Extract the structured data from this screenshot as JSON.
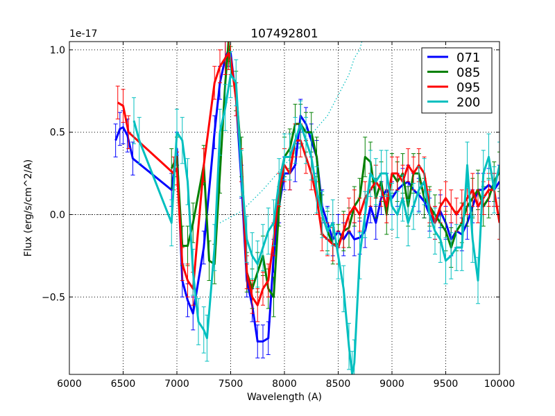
{
  "chart_data": {
    "type": "line",
    "title": "107492801",
    "xlabel": "Wavelength (A)",
    "ylabel": "Flux (erg/s/cm^2/A)",
    "offset_label": "1e-17",
    "xlim": [
      6000,
      10000
    ],
    "ylim": [
      -0.97,
      1.05
    ],
    "x_ticks": [
      6000,
      6500,
      7000,
      7500,
      8000,
      8500,
      9000,
      9500,
      10000
    ],
    "x_tick_labels": [
      "6000",
      "6500",
      "7000",
      "7500",
      "8000",
      "8500",
      "9000",
      "9500",
      "10000"
    ],
    "y_ticks": [
      -0.5,
      0.0,
      0.5,
      1.0
    ],
    "y_tick_labels": [
      "−0.5",
      "0.0",
      "0.5",
      "1.0"
    ],
    "grid": true,
    "legend_position": "top-right",
    "series": [
      {
        "name": "071",
        "color": "#0000ff",
        "x": [
          6430,
          6470,
          6500,
          6540,
          6590,
          6950,
          7000,
          7050,
          7100,
          7150,
          7250,
          7350,
          7400,
          7450,
          7480,
          7500,
          7550,
          7600,
          7650,
          7700,
          7750,
          7800,
          7850,
          7900,
          7950,
          8000,
          8050,
          8100,
          8150,
          8200,
          8250,
          8300,
          8350,
          8400,
          8450,
          8500,
          8550,
          8600,
          8650,
          8700,
          8750,
          8800,
          8850,
          8900,
          8950,
          9000,
          9050,
          9100,
          9150,
          9200,
          9250,
          9300,
          9350,
          9400,
          9450,
          9500,
          9550,
          9600,
          9650,
          9700,
          9750,
          9800,
          9850,
          9900,
          9950,
          10000
        ],
        "y": [
          0.45,
          0.52,
          0.53,
          0.48,
          0.34,
          0.15,
          0.4,
          -0.4,
          -0.52,
          -0.6,
          -0.2,
          0.5,
          0.8,
          0.95,
          1.0,
          0.98,
          0.7,
          0.2,
          -0.4,
          -0.55,
          -0.77,
          -0.77,
          -0.75,
          -0.25,
          0.05,
          0.25,
          0.25,
          0.3,
          0.6,
          0.55,
          0.45,
          0.35,
          0.05,
          -0.05,
          -0.15,
          -0.1,
          -0.15,
          -0.1,
          -0.15,
          -0.14,
          -0.1,
          0.05,
          -0.05,
          0.1,
          0.15,
          0.1,
          0.15,
          0.18,
          0.2,
          0.15,
          0.12,
          0.08,
          0.0,
          -0.05,
          0.02,
          -0.05,
          -0.15,
          -0.1,
          -0.12,
          -0.05,
          0.05,
          0.15,
          0.15,
          0.18,
          0.15,
          0.2
        ],
        "err": 0.1
      },
      {
        "name": "085",
        "color": "#008000",
        "x": [
          6950,
          7000,
          7050,
          7100,
          7150,
          7250,
          7300,
          7350,
          7400,
          7450,
          7480,
          7500,
          7550,
          7600,
          7650,
          7700,
          7750,
          7800,
          7850,
          7900,
          7950,
          8000,
          8050,
          8100,
          8150,
          8200,
          8250,
          8300,
          8350,
          8400,
          8450,
          8500,
          8550,
          8600,
          8650,
          8700,
          8750,
          8800,
          8850,
          8900,
          8950,
          9000,
          9050,
          9100,
          9150,
          9200,
          9250,
          9300,
          9350,
          9400,
          9450,
          9500,
          9550,
          9600,
          9650,
          9700,
          9750,
          9800,
          9850,
          9900,
          9950,
          10000
        ],
        "y": [
          0.28,
          0.35,
          -0.19,
          -0.19,
          -0.05,
          0.3,
          -0.28,
          -0.3,
          0.25,
          0.8,
          1.05,
          0.9,
          0.75,
          0.35,
          -0.35,
          -0.45,
          -0.35,
          -0.25,
          -0.45,
          -0.5,
          0.05,
          0.35,
          0.4,
          0.55,
          0.55,
          0.5,
          0.5,
          0.35,
          0.0,
          -0.1,
          -0.18,
          -0.18,
          -0.1,
          -0.08,
          0.05,
          0.1,
          0.35,
          0.32,
          0.1,
          0.2,
          0.0,
          0.25,
          0.2,
          0.25,
          0.05,
          0.25,
          0.25,
          0.1,
          0.05,
          0.0,
          -0.05,
          -0.1,
          -0.2,
          -0.1,
          -0.05,
          0.05,
          0.1,
          0.15,
          0.05,
          0.1,
          0.2,
          0.26
        ],
        "err": 0.12
      },
      {
        "name": "095",
        "color": "#ff0000",
        "x": [
          6450,
          6500,
          6550,
          6970,
          7000,
          7050,
          7100,
          7150,
          7250,
          7350,
          7400,
          7450,
          7480,
          7500,
          7550,
          7600,
          7650,
          7700,
          7750,
          7800,
          7850,
          7900,
          7950,
          8000,
          8050,
          8100,
          8150,
          8200,
          8250,
          8300,
          8350,
          8400,
          8450,
          8500,
          8550,
          8600,
          8650,
          8700,
          8750,
          8800,
          8850,
          8900,
          8950,
          9000,
          9050,
          9100,
          9150,
          9200,
          9250,
          9300,
          9350,
          9400,
          9450,
          9500,
          9550,
          9600,
          9650,
          9700,
          9750,
          9800,
          9850,
          9900,
          9950,
          10000
        ],
        "y": [
          0.68,
          0.66,
          0.5,
          0.25,
          0.28,
          -0.3,
          -0.4,
          -0.45,
          0.3,
          0.8,
          0.9,
          0.95,
          0.98,
          0.95,
          0.7,
          0.3,
          -0.35,
          -0.5,
          -0.55,
          -0.45,
          -0.4,
          -0.15,
          0.15,
          0.3,
          0.25,
          0.45,
          0.45,
          0.35,
          0.25,
          0.1,
          -0.12,
          -0.15,
          -0.18,
          -0.2,
          -0.1,
          0.0,
          0.05,
          0.0,
          0.1,
          0.15,
          0.2,
          0.15,
          0.05,
          0.25,
          0.25,
          0.2,
          0.3,
          0.25,
          0.3,
          0.25,
          0.05,
          -0.05,
          0.05,
          0.1,
          0.05,
          0.0,
          0.05,
          0.1,
          0.15,
          0.05,
          0.1,
          0.15,
          0.15,
          -0.05
        ],
        "err": 0.1
      },
      {
        "name": "200",
        "color": "#00bfbf",
        "x": [
          6600,
          6650,
          6950,
          7000,
          7050,
          7100,
          7150,
          7200,
          7250,
          7280,
          7350,
          7400,
          7450,
          7500,
          7550,
          7600,
          7650,
          7700,
          7750,
          7800,
          7850,
          7900,
          7950,
          8000,
          8050,
          8100,
          8150,
          8200,
          8250,
          8300,
          8350,
          8400,
          8450,
          8500,
          8550,
          8600,
          8630,
          8650,
          8700,
          8750,
          8800,
          8850,
          8900,
          8950,
          9000,
          9050,
          9100,
          9150,
          9200,
          9250,
          9300,
          9350,
          9400,
          9450,
          9500,
          9550,
          9600,
          9650,
          9700,
          9750,
          9800,
          9850,
          9900,
          9950,
          10000
        ],
        "y": [
          0.57,
          0.45,
          -0.05,
          0.5,
          0.45,
          0.2,
          -0.35,
          -0.65,
          -0.7,
          -0.75,
          -0.2,
          0.5,
          0.65,
          0.85,
          0.8,
          0.25,
          -0.15,
          -0.25,
          -0.3,
          -0.2,
          -0.1,
          -0.05,
          0.2,
          0.35,
          0.35,
          0.45,
          0.55,
          0.45,
          0.35,
          0.15,
          0.0,
          -0.1,
          -0.05,
          -0.25,
          -0.45,
          -0.8,
          -0.97,
          -0.9,
          -0.25,
          0.0,
          0.25,
          0.2,
          0.25,
          0.25,
          0.05,
          0.0,
          0.1,
          -0.05,
          0.05,
          0.15,
          0.2,
          0.0,
          -0.1,
          -0.15,
          -0.28,
          -0.25,
          -0.2,
          -0.2,
          0.3,
          -0.15,
          -0.4,
          0.25,
          0.35,
          0.15,
          0.3
        ],
        "err": 0.14
      }
    ],
    "model_line": {
      "color": "#00bfbf",
      "x": [
        7400,
        7600,
        7800,
        8000,
        8200,
        8400,
        8600,
        8650,
        8700,
        8720
      ],
      "y": [
        -0.05,
        0.02,
        0.15,
        0.3,
        0.45,
        0.6,
        0.85,
        0.95,
        1.0,
        1.05
      ]
    },
    "zero_line": {
      "color": "#000000",
      "y": 0.0
    }
  }
}
